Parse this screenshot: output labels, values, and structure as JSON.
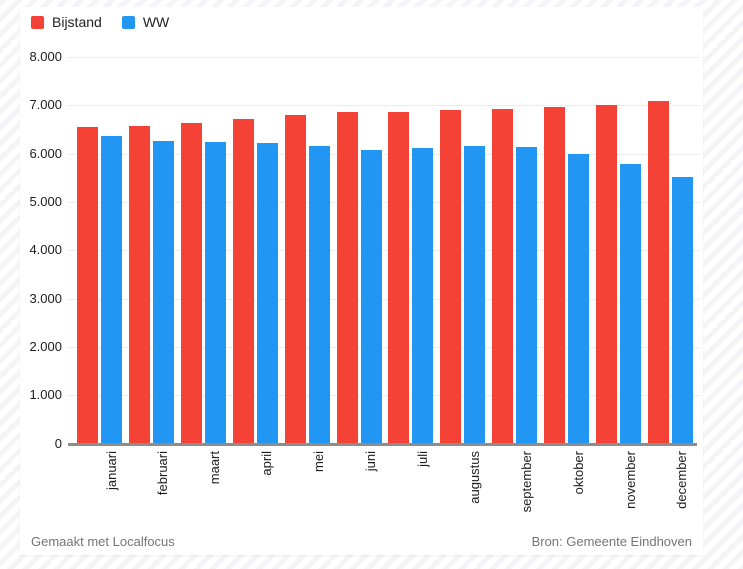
{
  "chart_data": {
    "type": "bar",
    "title": "",
    "categories": [
      "januari",
      "februari",
      "maart",
      "april",
      "mei",
      "juni",
      "juli",
      "augustus",
      "september",
      "oktober",
      "november",
      "december"
    ],
    "series": [
      {
        "name": "Bijstand",
        "color": "#f44336",
        "values": [
          6550,
          6570,
          6630,
          6720,
          6800,
          6860,
          6870,
          6910,
          6930,
          6960,
          7000,
          7080
        ]
      },
      {
        "name": "WW",
        "color": "#2196f3",
        "values": [
          6370,
          6270,
          6250,
          6230,
          6150,
          6080,
          6120,
          6150,
          6130,
          5990,
          5780,
          5510
        ]
      }
    ],
    "ylim": [
      0,
      8000
    ],
    "ytick_step": 1000,
    "ytick_labels": [
      "0",
      "1.000",
      "2.000",
      "3.000",
      "4.000",
      "5.000",
      "6.000",
      "7.000",
      "8.000"
    ],
    "grid": true,
    "legend_position": "top-left",
    "xlabel": "",
    "ylabel": ""
  },
  "footer": {
    "made_with": "Gemaakt met Localfocus",
    "source": "Bron: Gemeente Eindhoven"
  },
  "theme": {
    "bijstand_color": "#f44336",
    "ww_color": "#2196f3",
    "grid_color": "#ececec",
    "axis_color": "#8d8d8d",
    "text_color": "#1c1c1c",
    "muted_text_color": "#757575",
    "hatch_color": "#f4f4f8"
  }
}
